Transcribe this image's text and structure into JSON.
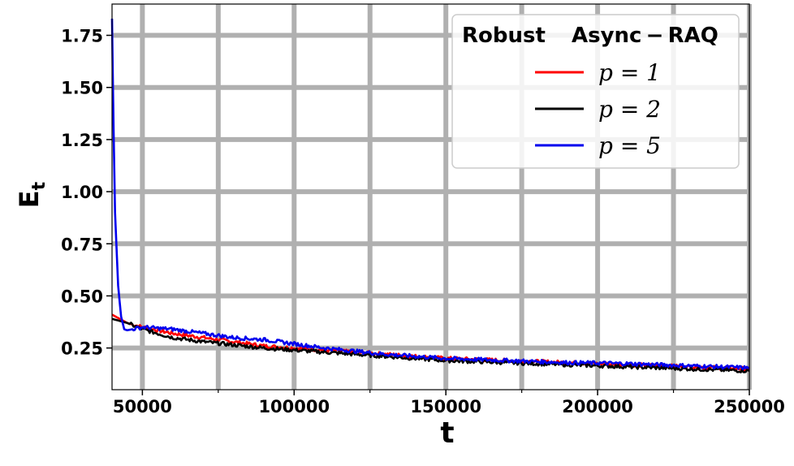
{
  "chart_data": {
    "type": "line",
    "title": "",
    "xlabel": "t",
    "ylabel": "E",
    "ylabel_sub": "t",
    "xlim": [
      40000,
      250000
    ],
    "ylim": [
      0.05,
      1.9
    ],
    "x_ticks": [
      50000,
      100000,
      150000,
      200000,
      250000
    ],
    "x_tick_labels": [
      "50000",
      "100000",
      "150000",
      "200000",
      "250000"
    ],
    "x_minor_ticks": [
      75000,
      125000,
      175000,
      225000
    ],
    "y_ticks": [
      0.25,
      0.5,
      0.75,
      1.0,
      1.25,
      1.5,
      1.75
    ],
    "y_tick_labels": [
      "0.25",
      "0.50",
      "0.75",
      "1.00",
      "1.25",
      "1.50",
      "1.75"
    ],
    "grid": true,
    "grid_color": "#b0b0b0",
    "legend": {
      "title_left": "Robust",
      "title_right": "Async − RAQ",
      "placement": "top-right"
    },
    "series": [
      {
        "name": "p = 1",
        "color": "#ff0000",
        "x": [
          40000,
          45000,
          50000,
          60000,
          70000,
          80000,
          90000,
          100000,
          110000,
          120000,
          130000,
          140000,
          150000,
          160000,
          170000,
          180000,
          190000,
          200000,
          210000,
          220000,
          230000,
          240000,
          250000
        ],
        "y": [
          0.41,
          0.37,
          0.35,
          0.32,
          0.3,
          0.28,
          0.26,
          0.25,
          0.24,
          0.23,
          0.22,
          0.21,
          0.2,
          0.195,
          0.19,
          0.185,
          0.18,
          0.175,
          0.17,
          0.165,
          0.16,
          0.155,
          0.15
        ]
      },
      {
        "name": "p = 2",
        "color": "#000000",
        "x": [
          40000,
          45000,
          50000,
          60000,
          70000,
          80000,
          90000,
          100000,
          110000,
          120000,
          130000,
          140000,
          150000,
          160000,
          170000,
          180000,
          190000,
          200000,
          210000,
          220000,
          230000,
          240000,
          250000
        ],
        "y": [
          0.39,
          0.37,
          0.34,
          0.3,
          0.28,
          0.265,
          0.25,
          0.24,
          0.23,
          0.22,
          0.21,
          0.2,
          0.19,
          0.185,
          0.18,
          0.175,
          0.17,
          0.165,
          0.16,
          0.155,
          0.15,
          0.145,
          0.14
        ]
      },
      {
        "name": "p = 5",
        "color": "#0000ee",
        "x": [
          40000,
          40500,
          41000,
          42000,
          43000,
          44000,
          45000,
          50000,
          60000,
          70000,
          80000,
          90000,
          100000,
          110000,
          120000,
          130000,
          140000,
          150000,
          160000,
          170000,
          180000,
          190000,
          200000,
          210000,
          220000,
          230000,
          240000,
          250000
        ],
        "y": [
          1.83,
          1.3,
          0.9,
          0.55,
          0.4,
          0.34,
          0.335,
          0.35,
          0.34,
          0.32,
          0.3,
          0.29,
          0.27,
          0.25,
          0.235,
          0.22,
          0.21,
          0.2,
          0.195,
          0.19,
          0.185,
          0.18,
          0.178,
          0.175,
          0.17,
          0.165,
          0.16,
          0.155
        ]
      }
    ]
  }
}
